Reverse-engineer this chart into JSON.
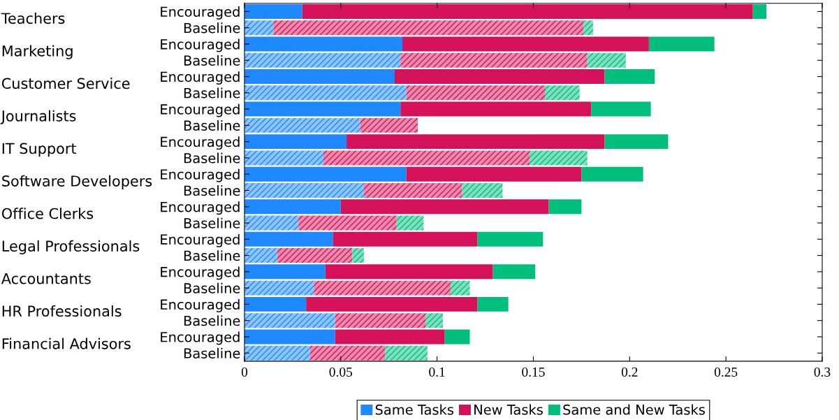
{
  "chart_data": {
    "type": "bar",
    "orientation": "horizontal",
    "stacked": true,
    "categories": [
      "Encouraged",
      "Baseline",
      "Encouraged",
      "Baseline",
      "Encouraged",
      "Baseline",
      "Encouraged",
      "Baseline",
      "Encouraged",
      "Baseline",
      "Encouraged",
      "Baseline",
      "Encouraged",
      "Baseline",
      "Encouraged",
      "Baseline",
      "Encouraged",
      "Baseline",
      "Encouraged",
      "Baseline",
      "Encouraged",
      "Baseline"
    ],
    "annotations": [
      "Teachers",
      "Marketing",
      "Customer Service",
      "Journalists",
      "IT Support",
      "Software Developers",
      "Office Clerks",
      "Legal Professionals",
      "Accountants",
      "HR Professionals",
      "Financial Advisors"
    ],
    "series": [
      {
        "name": "Same Tasks",
        "color": "#1e88ff",
        "colors": [
          "#1e88ff",
          "#8cc4ff",
          "#1e88ff",
          "#8cc4ff",
          "#1e88ff",
          "#8cc4ff",
          "#1e88ff",
          "#8cc4ff",
          "#1e88ff",
          "#8cc4ff",
          "#1e88ff",
          "#8cc4ff",
          "#1e88ff",
          "#8cc4ff",
          "#1e88ff",
          "#8cc4ff",
          "#1e88ff",
          "#8cc4ff",
          "#1e88ff",
          "#8cc4ff",
          "#1e88ff",
          "#8cc4ff"
        ],
        "values": [
          0.03,
          0.015,
          0.082,
          0.081,
          0.078,
          0.084,
          0.081,
          0.06,
          0.053,
          0.041,
          0.084,
          0.062,
          0.05,
          0.028,
          0.046,
          0.017,
          0.042,
          0.036,
          0.032,
          0.047,
          0.047,
          0.034
        ]
      },
      {
        "name": "New Tasks",
        "color": "#d41159",
        "colors": [
          "#d41159",
          "#e88aac",
          "#d41159",
          "#e88aac",
          "#d41159",
          "#e88aac",
          "#d41159",
          "#e88aac",
          "#d41159",
          "#e88aac",
          "#d41159",
          "#e88aac",
          "#d41159",
          "#e88aac",
          "#d41159",
          "#e88aac",
          "#d41159",
          "#e88aac",
          "#d41159",
          "#e88aac",
          "#d41159",
          "#e88aac"
        ],
        "values": [
          0.234,
          0.161,
          0.128,
          0.097,
          0.109,
          0.072,
          0.099,
          0.03,
          0.134,
          0.107,
          0.091,
          0.051,
          0.108,
          0.051,
          0.075,
          0.039,
          0.087,
          0.071,
          0.089,
          0.047,
          0.057,
          0.039
        ]
      },
      {
        "name": "Same and New Tasks",
        "color": "#00bf7d",
        "colors": [
          "#00bf7d",
          "#80dfbe",
          "#00bf7d",
          "#80dfbe",
          "#00bf7d",
          "#80dfbe",
          "#00bf7d",
          "#80dfbe",
          "#00bf7d",
          "#80dfbe",
          "#00bf7d",
          "#80dfbe",
          "#00bf7d",
          "#80dfbe",
          "#00bf7d",
          "#80dfbe",
          "#00bf7d",
          "#80dfbe",
          "#00bf7d",
          "#80dfbe",
          "#00bf7d",
          "#80dfbe"
        ],
        "values": [
          0.007,
          0.005,
          0.034,
          0.02,
          0.026,
          0.018,
          0.031,
          0,
          0.033,
          0.03,
          0.032,
          0.021,
          0.017,
          0.014,
          0.034,
          0.006,
          0.022,
          0.01,
          0.016,
          0.009,
          0.013,
          0.022
        ]
      }
    ],
    "xlim": [
      0,
      0.3
    ],
    "xticks": [
      0,
      0.05,
      0.1,
      0.15,
      0.2,
      0.25,
      0.3
    ],
    "grid": false,
    "legend": "bottom"
  }
}
